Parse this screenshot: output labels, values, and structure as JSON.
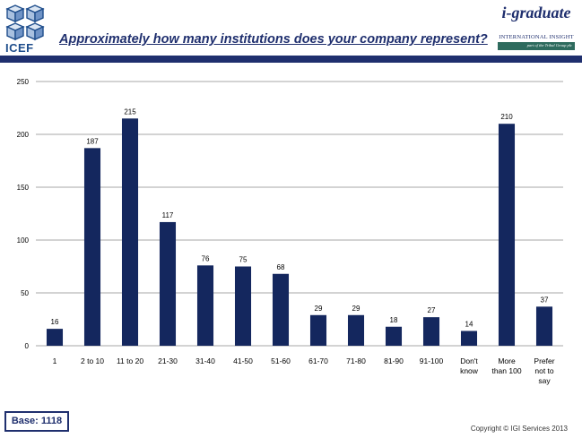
{
  "header": {
    "icef_logo": {
      "icon": "icef-cubes-logo",
      "text": "ICEF"
    },
    "title": "Approximately how many institutions does your company represent?",
    "igi_logo": {
      "name": "i-graduate",
      "subtitle": "INTERNATIONAL INSIGHT",
      "tagline": "part of the Tribal Group plc"
    }
  },
  "chart_data": {
    "type": "bar",
    "categories": [
      "1",
      "2 to 10",
      "11 to 20",
      "21-30",
      "31-40",
      "41-50",
      "51-60",
      "61-70",
      "71-80",
      "81-90",
      "91-100",
      "Don't know",
      "More than 100",
      "Prefer not to say"
    ],
    "values": [
      16,
      187,
      215,
      117,
      76,
      75,
      68,
      29,
      29,
      18,
      27,
      14,
      210,
      37
    ],
    "title": "",
    "xlabel": "",
    "ylabel": "",
    "ylim": [
      0,
      250
    ],
    "yticks": [
      0,
      50,
      100,
      150,
      200,
      250
    ],
    "grid": true,
    "legend": "none",
    "bar_color": "#14275e",
    "grid_color": "#8a8a8a"
  },
  "footer": {
    "base_label": "Base: 1118",
    "copyright": "Copyright © IGI Services 2013"
  }
}
